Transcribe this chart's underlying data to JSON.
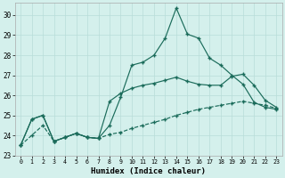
{
  "xlabel": "Humidex (Indice chaleur)",
  "background_color": "#d4f0ec",
  "grid_color": "#b8ddd8",
  "line_color": "#1a6b5a",
  "xlim": [
    -0.5,
    23.5
  ],
  "ylim": [
    23,
    30.6
  ],
  "yticks": [
    23,
    24,
    25,
    26,
    27,
    28,
    29,
    30
  ],
  "xticks": [
    0,
    1,
    2,
    3,
    4,
    5,
    6,
    7,
    8,
    9,
    10,
    11,
    12,
    13,
    14,
    15,
    16,
    17,
    18,
    19,
    20,
    21,
    22,
    23
  ],
  "line1_x": [
    0,
    1,
    2,
    3,
    4,
    5,
    6,
    7,
    8,
    9,
    10,
    11,
    12,
    13,
    14,
    15,
    16,
    17,
    18,
    19,
    20,
    21,
    22,
    23
  ],
  "line1_y": [
    23.5,
    24.8,
    25.0,
    23.7,
    23.9,
    24.1,
    23.9,
    23.85,
    24.5,
    25.9,
    27.5,
    27.65,
    28.0,
    28.85,
    30.35,
    29.05,
    28.85,
    27.85,
    27.5,
    27.0,
    26.55,
    25.65,
    25.4,
    25.3
  ],
  "line2_x": [
    0,
    1,
    2,
    3,
    4,
    5,
    6,
    7,
    8,
    9,
    10,
    11,
    12,
    13,
    14,
    15,
    16,
    17,
    18,
    19,
    20,
    21,
    22,
    23
  ],
  "line2_y": [
    23.5,
    24.8,
    25.0,
    23.7,
    23.9,
    24.1,
    23.9,
    23.85,
    25.7,
    26.1,
    26.35,
    26.5,
    26.6,
    26.75,
    26.9,
    26.7,
    26.55,
    26.5,
    26.5,
    26.95,
    27.05,
    26.5,
    25.75,
    25.4
  ],
  "line3_x": [
    0,
    1,
    2,
    3,
    4,
    5,
    6,
    7,
    8,
    9,
    10,
    11,
    12,
    13,
    14,
    15,
    16,
    17,
    18,
    19,
    20,
    21,
    22,
    23
  ],
  "line3_y": [
    23.5,
    24.0,
    24.5,
    23.7,
    23.9,
    24.1,
    23.9,
    23.85,
    24.05,
    24.15,
    24.35,
    24.5,
    24.65,
    24.8,
    25.0,
    25.15,
    25.3,
    25.4,
    25.5,
    25.6,
    25.7,
    25.6,
    25.5,
    25.35
  ]
}
